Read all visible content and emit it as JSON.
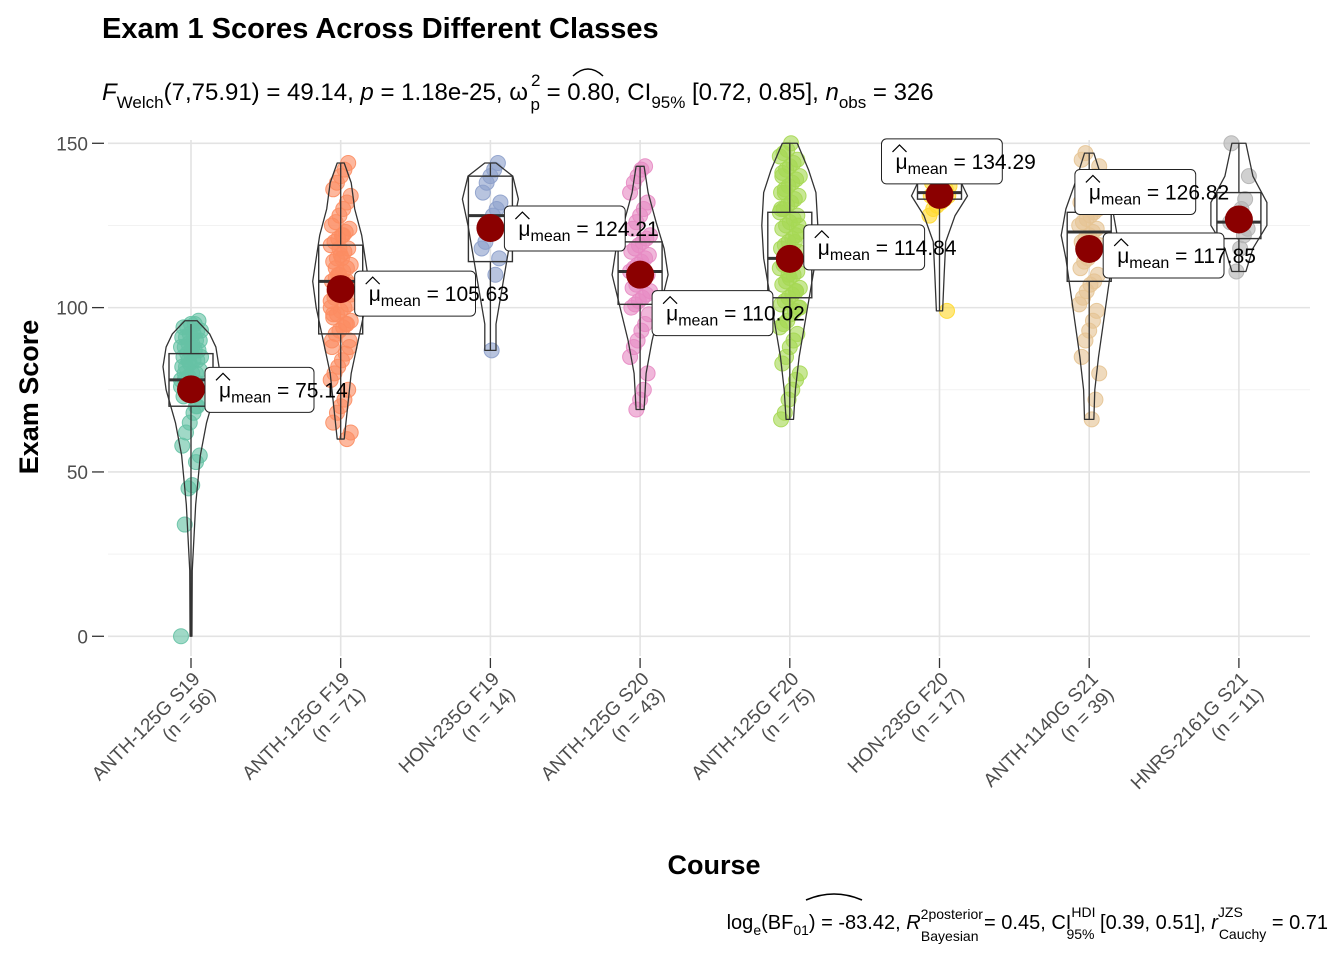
{
  "chart_data": {
    "type": "violin-box-scatter",
    "title": "Exam 1 Scores Across Different Classes",
    "subtitle": {
      "prefix": "F",
      "prefix_sub": "Welch",
      "df_stat": "(7,75.91) = 49.14, ",
      "p_sym": "p",
      "p_val": " = 1.18e-25, ",
      "omega": "ω",
      "omega_sup": "2",
      "omega_sub": "p",
      "omega_val": " = 0.80, CI",
      "ci_sub": "95%",
      "ci_val": " [0.72, 0.85], ",
      "n_sym": "n",
      "n_sub": "obs",
      "n_val": " = 326"
    },
    "xlabel": "Course",
    "ylabel": "Exam Score",
    "ylim": [
      -6,
      151
    ],
    "yticks": [
      0,
      50,
      100,
      150
    ],
    "mean_symbol": "μ",
    "mean_sub": "mean",
    "mean_color": "#8B0000",
    "grid": true,
    "groups": [
      {
        "label": "ANTH-125G S19",
        "n_label": "(n = 56)",
        "color": "#66C2A5",
        "mean": 75.14,
        "mean_label": "75.14",
        "q1": 70,
        "median": 78,
        "q3": 86,
        "whisker_lo": 0,
        "whisker_hi": 95,
        "violin": [
          [
            0,
            0.3
          ],
          [
            20,
            0.4
          ],
          [
            40,
            1.5
          ],
          [
            55,
            3
          ],
          [
            65,
            5
          ],
          [
            75,
            8
          ],
          [
            82,
            9
          ],
          [
            88,
            8
          ],
          [
            92,
            6
          ],
          [
            96,
            2
          ]
        ],
        "points": [
          0,
          34,
          45,
          46,
          53,
          55,
          58,
          62,
          65,
          68,
          70,
          72,
          73,
          74,
          75,
          76,
          77,
          78,
          78,
          79,
          80,
          80,
          81,
          82,
          82,
          83,
          84,
          84,
          85,
          85,
          86,
          86,
          87,
          87,
          88,
          88,
          89,
          89,
          90,
          90,
          91,
          91,
          92,
          92,
          93,
          93,
          94,
          94,
          95,
          95,
          96,
          76,
          80,
          84,
          88,
          70
        ]
      },
      {
        "label": "ANTH-125G F19",
        "n_label": "(n = 71)",
        "color": "#FC8D62",
        "mean": 105.63,
        "mean_label": "105.63",
        "q1": 92,
        "median": 108,
        "q3": 119,
        "whisker_lo": 60,
        "whisker_hi": 144,
        "violin": [
          [
            60,
            1
          ],
          [
            70,
            2
          ],
          [
            80,
            3
          ],
          [
            90,
            5
          ],
          [
            100,
            7
          ],
          [
            108,
            8
          ],
          [
            115,
            7
          ],
          [
            122,
            6
          ],
          [
            130,
            4
          ],
          [
            138,
            3
          ],
          [
            144,
            1
          ]
        ],
        "points": [
          60,
          62,
          65,
          68,
          70,
          72,
          75,
          78,
          80,
          82,
          84,
          86,
          88,
          90,
          92,
          93,
          94,
          95,
          96,
          97,
          98,
          99,
          100,
          101,
          102,
          103,
          104,
          105,
          106,
          107,
          108,
          109,
          110,
          111,
          112,
          113,
          114,
          115,
          116,
          117,
          118,
          119,
          120,
          121,
          122,
          123,
          124,
          125,
          126,
          128,
          130,
          132,
          134,
          136,
          138,
          140,
          142,
          144,
          100,
          105,
          110,
          115,
          95,
          90,
          88,
          112,
          118,
          122,
          108,
          104,
          98
        ]
      },
      {
        "label": "HON-235G F19",
        "n_label": "(n = 14)",
        "color": "#8DA0CB",
        "mean": 124.21,
        "mean_label": "124.21",
        "q1": 114,
        "median": 128,
        "q3": 140,
        "whisker_lo": 87,
        "whisker_hi": 144,
        "violin": [
          [
            87,
            1
          ],
          [
            95,
            1
          ],
          [
            105,
            2
          ],
          [
            115,
            3
          ],
          [
            125,
            4
          ],
          [
            133,
            5
          ],
          [
            140,
            4
          ],
          [
            144,
            1
          ]
        ],
        "points": [
          87,
          110,
          115,
          118,
          120,
          125,
          128,
          130,
          132,
          135,
          138,
          140,
          142,
          144
        ]
      },
      {
        "label": "ANTH-125G S20",
        "n_label": "(n = 43)",
        "color": "#E78AC3",
        "mean": 110.02,
        "mean_label": "110.02",
        "q1": 101,
        "median": 111,
        "q3": 120,
        "whisker_lo": 69,
        "whisker_hi": 143,
        "violin": [
          [
            69,
            1
          ],
          [
            80,
            1.5
          ],
          [
            90,
            3
          ],
          [
            100,
            5
          ],
          [
            110,
            7
          ],
          [
            118,
            6
          ],
          [
            126,
            4
          ],
          [
            135,
            2
          ],
          [
            143,
            1
          ]
        ],
        "points": [
          69,
          72,
          75,
          80,
          85,
          88,
          90,
          93,
          95,
          98,
          100,
          101,
          102,
          103,
          104,
          105,
          106,
          107,
          108,
          109,
          110,
          111,
          112,
          113,
          114,
          115,
          116,
          117,
          118,
          119,
          120,
          121,
          122,
          124,
          126,
          128,
          130,
          132,
          135,
          138,
          140,
          142,
          143
        ]
      },
      {
        "label": "ANTH-125G F20",
        "n_label": "(n = 75)",
        "color": "#A6D854",
        "mean": 114.84,
        "mean_label": "114.84",
        "q1": 103,
        "median": 115,
        "q3": 129,
        "whisker_lo": 66,
        "whisker_hi": 150,
        "violin": [
          [
            66,
            1
          ],
          [
            75,
            1.5
          ],
          [
            85,
            2.5
          ],
          [
            95,
            4
          ],
          [
            105,
            5.5
          ],
          [
            115,
            7
          ],
          [
            125,
            7.5
          ],
          [
            135,
            7
          ],
          [
            142,
            5
          ],
          [
            150,
            2
          ]
        ],
        "points": [
          66,
          68,
          72,
          75,
          78,
          80,
          83,
          85,
          88,
          90,
          92,
          94,
          95,
          96,
          98,
          99,
          100,
          101,
          102,
          103,
          104,
          105,
          106,
          107,
          108,
          109,
          110,
          111,
          112,
          113,
          114,
          115,
          116,
          117,
          118,
          119,
          120,
          121,
          122,
          123,
          124,
          125,
          126,
          127,
          128,
          129,
          130,
          131,
          132,
          133,
          134,
          135,
          136,
          137,
          138,
          139,
          140,
          141,
          142,
          143,
          144,
          145,
          146,
          147,
          148,
          150,
          120,
          125,
          130,
          135,
          110,
          115,
          105,
          100,
          140
        ]
      },
      {
        "label": "HON-235G F20",
        "n_label": "(n = 17)",
        "color": "#FFD92F",
        "mean": 134.29,
        "mean_label": "134.29",
        "q1": 133,
        "median": 135,
        "q3": 138,
        "whisker_lo": 99,
        "whisker_hi": 142,
        "violin": [
          [
            99,
            1
          ],
          [
            110,
            1.5
          ],
          [
            120,
            2
          ],
          [
            128,
            5
          ],
          [
            134,
            9
          ],
          [
            138,
            7
          ],
          [
            142,
            2
          ]
        ],
        "points": [
          99,
          128,
          130,
          131,
          132,
          133,
          134,
          134,
          135,
          135,
          136,
          136,
          137,
          138,
          139,
          140,
          142
        ]
      },
      {
        "label": "ANTH-1140G S21",
        "n_label": "(n = 39)",
        "color": "#E5C494",
        "mean": 117.85,
        "mean_label": "117.85",
        "q1": 108,
        "median": 123,
        "q3": 129,
        "whisker_lo": 66,
        "whisker_hi": 147,
        "violin": [
          [
            66,
            1
          ],
          [
            75,
            1.2
          ],
          [
            85,
            2
          ],
          [
            95,
            3
          ],
          [
            105,
            4
          ],
          [
            115,
            5
          ],
          [
            122,
            6
          ],
          [
            130,
            5
          ],
          [
            138,
            3
          ],
          [
            147,
            1
          ]
        ],
        "points": [
          66,
          72,
          80,
          85,
          90,
          93,
          96,
          99,
          101,
          103,
          105,
          107,
          108,
          110,
          112,
          114,
          115,
          117,
          118,
          119,
          120,
          121,
          122,
          123,
          124,
          125,
          126,
          127,
          128,
          129,
          130,
          132,
          134,
          136,
          138,
          140,
          143,
          145,
          147
        ]
      },
      {
        "label": "HNRS-2161G S21",
        "n_label": "(n = 11)",
        "color": "#B3B3B3",
        "mean": 126.82,
        "mean_label": "126.82",
        "q1": 121,
        "median": 126,
        "q3": 135,
        "whisker_lo": 111,
        "whisker_hi": 150,
        "violin": [
          [
            111,
            1
          ],
          [
            118,
            2
          ],
          [
            125,
            4
          ],
          [
            132,
            4
          ],
          [
            140,
            2
          ],
          [
            150,
            1
          ]
        ],
        "points": [
          111,
          118,
          122,
          124,
          126,
          127,
          128,
          130,
          133,
          140,
          150
        ]
      }
    ],
    "caption": {
      "prefix": "log",
      "prefix_sub": "e",
      "bf": "(BF",
      "bf_sub": "01",
      "bf_val": ") = -83.42, ",
      "r_sym": "R",
      "r_sup": "2",
      "posterior": "posterior",
      "bayesian": "Bayesian",
      "r_val": " = 0.45, CI",
      "hdi": "HDI",
      "ci_sub": "95%",
      "ci_val": " [0.39, 0.51], ",
      "rc_sym": "r",
      "jzs": "JZS",
      "cauchy": "Cauchy",
      "rc_val": " = 0.71"
    }
  }
}
